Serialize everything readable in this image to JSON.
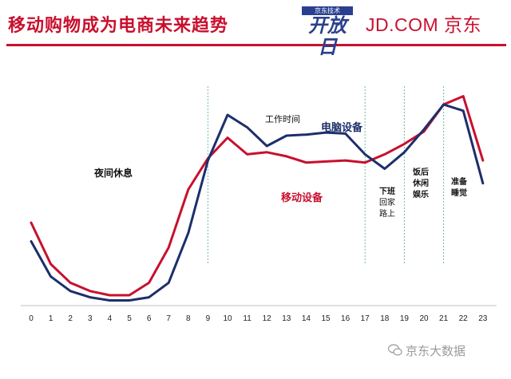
{
  "page": {
    "title": "移动购物成为电商未来趋势",
    "logo_top": "京东技术",
    "logo_main": "开放日",
    "brand": "JD.COM 京东",
    "watermark": "京东大数据"
  },
  "colors": {
    "pc_series": "#1c2f6b",
    "mobile_series": "#c8102e",
    "divider": "#6fb9b0",
    "axis": "#bfbfbf",
    "accent": "#c8102e"
  },
  "chart_data": {
    "type": "line",
    "x": [
      0,
      1,
      2,
      3,
      4,
      5,
      6,
      7,
      8,
      9,
      10,
      11,
      12,
      13,
      14,
      15,
      16,
      17,
      18,
      19,
      20,
      21,
      22,
      23
    ],
    "ylim": [
      0,
      100
    ],
    "series": [
      {
        "name": "电脑设备",
        "color": "#1c2f6b",
        "values": [
          31,
          14,
          7,
          4,
          2.5,
          2.5,
          4,
          11,
          35,
          70,
          92,
          86,
          77,
          82,
          82.5,
          83.5,
          83,
          73,
          66,
          74,
          85,
          97,
          94,
          59
        ]
      },
      {
        "name": "移动设备",
        "color": "#c8102e",
        "values": [
          40,
          20,
          11,
          7,
          5,
          5,
          11,
          28,
          56,
          71,
          81,
          73,
          74,
          72,
          69,
          69.5,
          70,
          69,
          73,
          78,
          84,
          97,
          101,
          70
        ]
      }
    ],
    "dividers_at": [
      9,
      17,
      19,
      21
    ],
    "annotations": [
      {
        "text": "夜间休息",
        "style": "plain"
      },
      {
        "text": "工作时间",
        "style": "plain"
      },
      {
        "text": "电脑设备",
        "style": "pc"
      },
      {
        "text": "移动设备",
        "style": "mobile"
      },
      {
        "text": "下班",
        "style": "period"
      },
      {
        "text": "回家",
        "style": "period"
      },
      {
        "text": "路上",
        "style": "period"
      },
      {
        "text": "饭后",
        "style": "period"
      },
      {
        "text": "休闲",
        "style": "period"
      },
      {
        "text": "娱乐",
        "style": "period"
      },
      {
        "text": "准备",
        "style": "period"
      },
      {
        "text": "睡觉",
        "style": "period"
      }
    ]
  }
}
